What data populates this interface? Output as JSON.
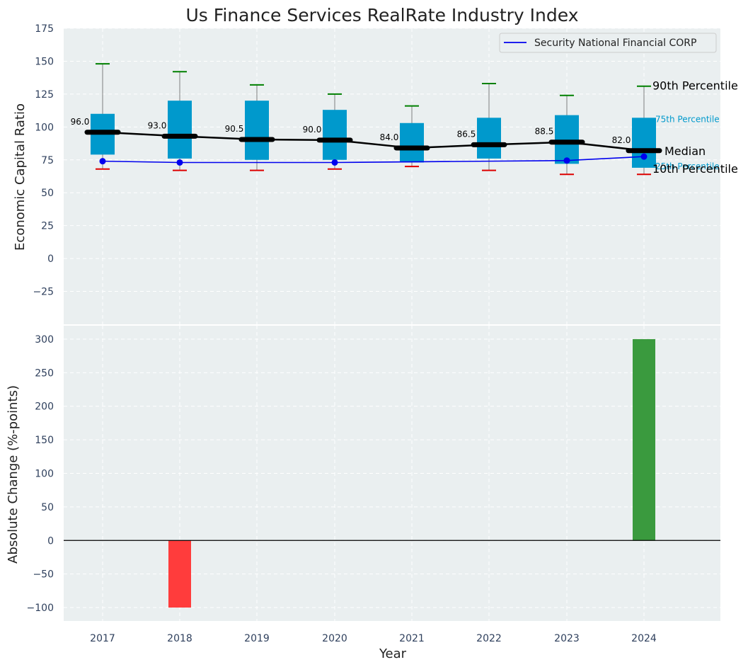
{
  "chart_data": [
    {
      "type": "box",
      "title": "Us Finance Services RealRate Industry Index",
      "ylabel": "Economic Capital Ratio",
      "ylim": [
        -50,
        175
      ],
      "yticks": [
        -25,
        0,
        25,
        50,
        75,
        100,
        125,
        150,
        175
      ],
      "grid": true,
      "legend": {
        "position": "top-right",
        "entries": [
          "Security National Financial CORP"
        ]
      },
      "years": [
        "2017",
        "2018",
        "2019",
        "2020",
        "2021",
        "2022",
        "2023",
        "2024"
      ],
      "percentiles": {
        "p90": [
          148,
          142,
          132,
          125,
          116,
          133,
          124,
          131
        ],
        "p75": [
          110,
          120,
          120,
          113,
          103,
          107,
          109,
          107
        ],
        "median": [
          96.0,
          93.0,
          90.5,
          90.0,
          84.0,
          86.5,
          88.5,
          82.0
        ],
        "p25": [
          79,
          76,
          75,
          75,
          73,
          76,
          72,
          69
        ],
        "p10": [
          68,
          67,
          67,
          68,
          70,
          67,
          64,
          64
        ]
      },
      "median_labels": [
        "96.0",
        "93.0",
        "90.5",
        "90.0",
        "84.0",
        "86.5",
        "88.5",
        "82.0"
      ],
      "series": [
        {
          "name": "Security National Financial CORP",
          "values": [
            74,
            73,
            73,
            73,
            73.5,
            74,
            74.5,
            77.5
          ]
        }
      ],
      "annotations": {
        "p90": "90th Percentile",
        "p75": "75th Percentile",
        "median": "Median",
        "p25": "25th Percentile",
        "p10": "10th Percentile"
      }
    },
    {
      "type": "bar",
      "xlabel": "Year",
      "ylabel": "Absolute Change (%-points)",
      "ylim": [
        -120,
        320
      ],
      "yticks": [
        -100,
        -50,
        0,
        50,
        100,
        150,
        200,
        250,
        300
      ],
      "grid": true,
      "categories": [
        "2017",
        "2018",
        "2019",
        "2020",
        "2021",
        "2022",
        "2023",
        "2024"
      ],
      "values": [
        0,
        -100,
        0,
        0,
        0,
        0,
        0,
        300
      ]
    }
  ],
  "colors": {
    "panel_bg": "#eaeff0",
    "box": "#0099cc",
    "median": "#000000",
    "whisker_top": "#008000",
    "whisker_bottom": "#dd0000",
    "company_line": "#0000ee",
    "bar_positive": "#3a9a3e",
    "bar_negative": "#ff3c3c",
    "annotation_blue": "#0099cc"
  }
}
